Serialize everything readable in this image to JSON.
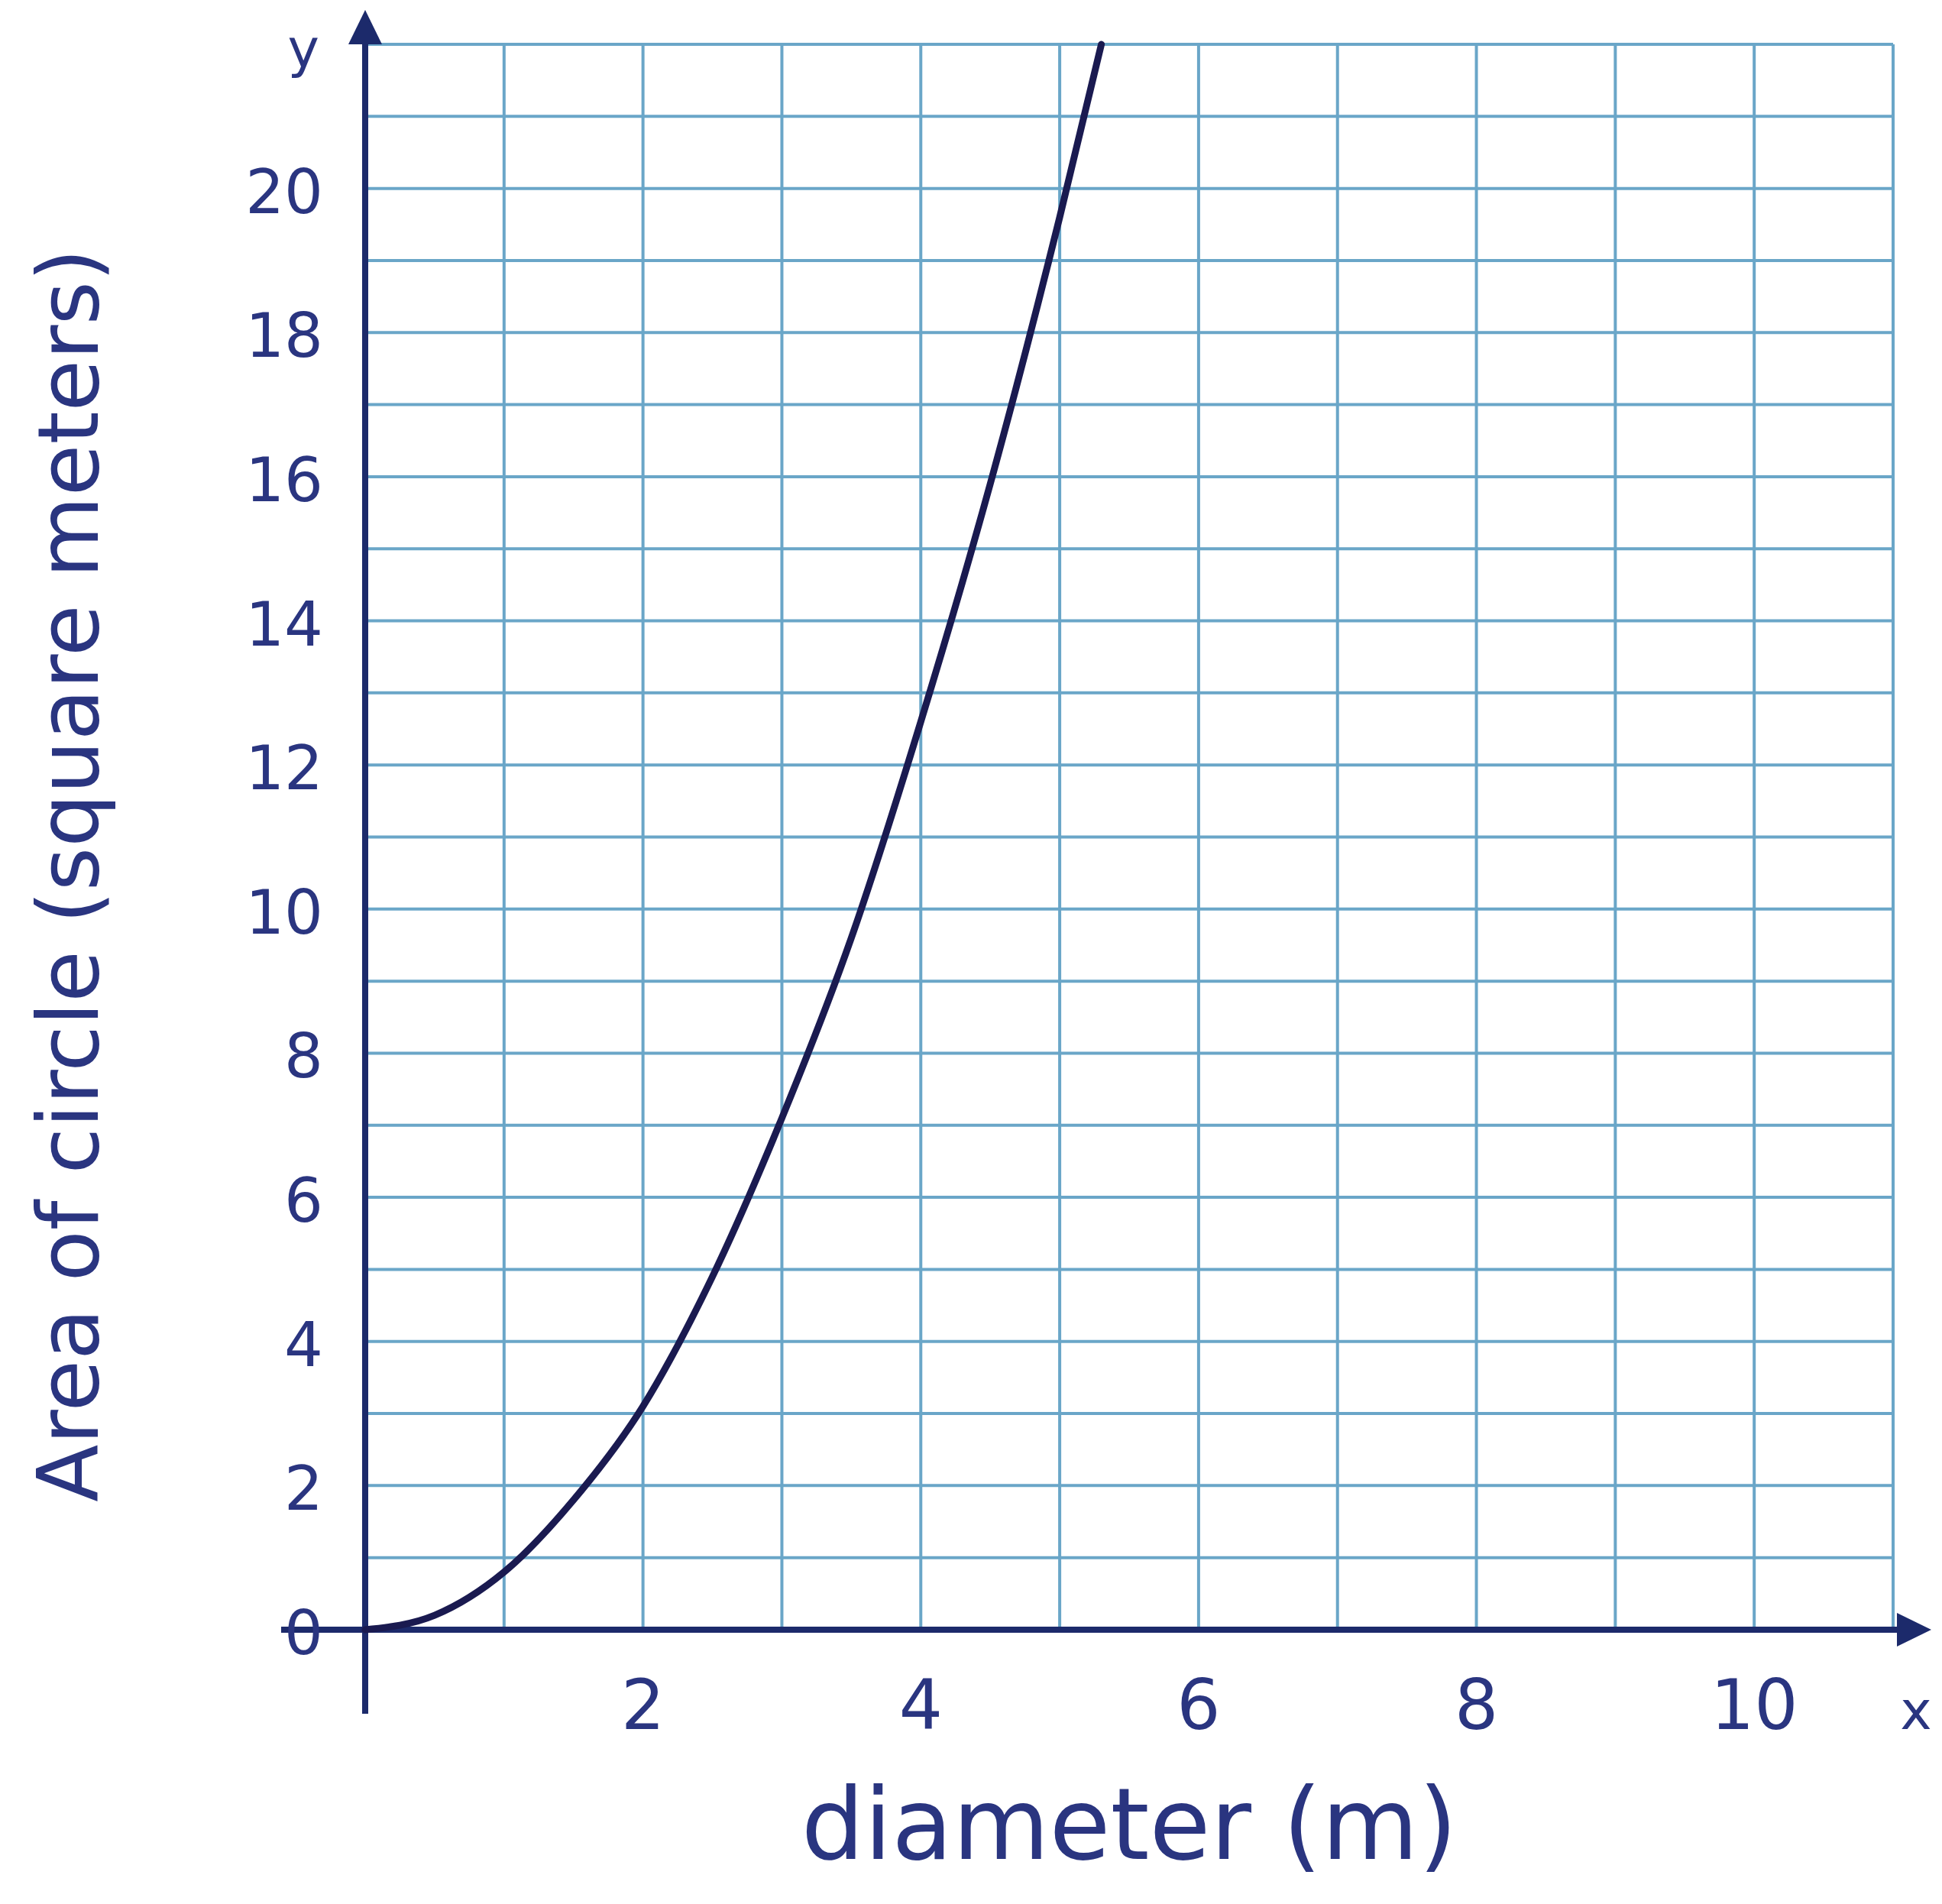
{
  "chart_data": {
    "type": "line",
    "xlabel": "diameter (m)",
    "ylabel": "Area of circle (square meters)",
    "x": [
      0,
      0.5,
      1,
      1.5,
      2,
      2.5,
      3,
      3.5,
      4,
      4.5,
      5,
      5.3
    ],
    "series": [
      {
        "color": "#1a1a50",
        "values": [
          0,
          0.2,
          0.8,
          1.8,
          3.1,
          4.9,
          7.1,
          9.6,
          12.6,
          15.9,
          19.6,
          22
        ]
      }
    ],
    "xlim": [
      0,
      11
    ],
    "ylim": [
      0,
      22
    ],
    "xticks": [
      {
        "value": 1,
        "label": null
      },
      2,
      {
        "value": 3,
        "label": null
      },
      4,
      {
        "value": 5,
        "label": null
      },
      6,
      {
        "value": 7,
        "label": null
      },
      8,
      {
        "value": 9,
        "label": null
      },
      10,
      {
        "value": 11,
        "label": null
      }
    ],
    "yticks": [
      0,
      {
        "value": 1,
        "label": null
      },
      2,
      {
        "value": 3,
        "label": null
      },
      4,
      {
        "value": 5,
        "label": null
      },
      6,
      {
        "value": 7,
        "label": null
      },
      8,
      {
        "value": 9,
        "label": null
      },
      10,
      {
        "value": 11,
        "label": null
      },
      12,
      {
        "value": 13,
        "label": null
      },
      14,
      {
        "value": 15,
        "label": null
      },
      16,
      {
        "value": 17,
        "label": null
      },
      18,
      {
        "value": 19,
        "label": null
      },
      20,
      {
        "value": 21,
        "label": null
      },
      {
        "value": 22,
        "label": null
      }
    ],
    "annotations": [
      "x",
      "y"
    ],
    "grid": true,
    "marker": "none",
    "line_style": "solid"
  }
}
